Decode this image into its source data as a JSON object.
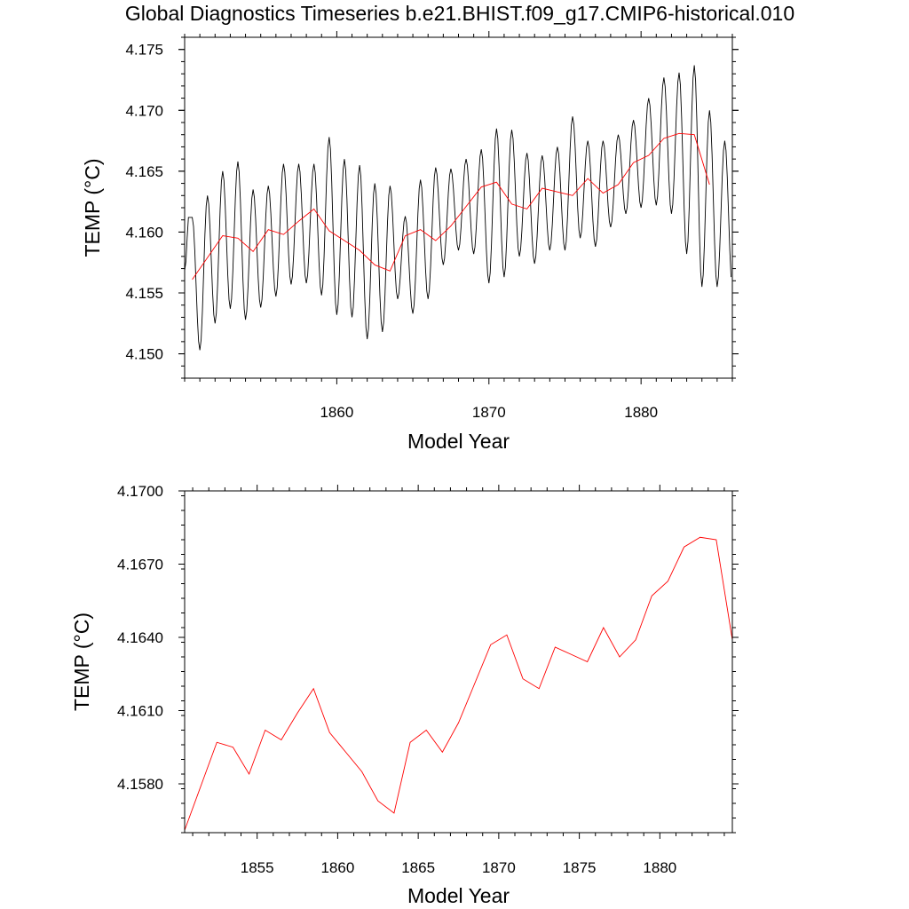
{
  "figure": {
    "title": "Global Diagnostics Timeseries b.e21.BHIST.f09_g17.CMIP6-historical.010"
  },
  "chart_data": [
    {
      "type": "line",
      "title": "",
      "xlabel": "Model Year",
      "ylabel": "TEMP (°C)",
      "xlim": [
        1850.0,
        1886.0
      ],
      "ylim": [
        4.148,
        4.176
      ],
      "xticks": [
        1860,
        1870,
        1880
      ],
      "xtick_labels": [
        "1860",
        "1870",
        "1880"
      ],
      "yticks": [
        4.15,
        4.155,
        4.16,
        4.165,
        4.17,
        4.175
      ],
      "ytick_labels": [
        "4.150",
        "4.155",
        "4.160",
        "4.165",
        "4.170",
        "4.175"
      ],
      "grid": false,
      "series": [
        {
          "color": "#000000",
          "style": "monthly",
          "points_per_year": 12,
          "start": 1850.0,
          "peaks": [
            4.1612,
            4.163,
            4.165,
            4.1658,
            4.1635,
            4.1638,
            4.1656,
            4.1656,
            4.1656,
            4.1678,
            4.166,
            4.1655,
            4.164,
            4.1638,
            4.1613,
            4.1643,
            4.1653,
            4.1652,
            4.166,
            4.1668,
            4.1685,
            4.1684,
            4.1665,
            4.1663,
            4.167,
            4.1695,
            4.1675,
            4.1675,
            4.168,
            4.1692,
            4.171,
            4.1727,
            4.1731,
            4.1737,
            4.17,
            4.1675
          ],
          "troughs": [
            4.1503,
            4.1525,
            4.1537,
            4.1528,
            4.1538,
            4.1547,
            4.1557,
            4.1558,
            4.1548,
            4.1532,
            4.153,
            4.1512,
            4.1518,
            4.1545,
            4.1533,
            4.1545,
            4.1573,
            4.1585,
            4.1582,
            4.1558,
            4.1563,
            4.158,
            4.1574,
            4.1585,
            4.1585,
            4.1595,
            4.1588,
            4.1604,
            4.1615,
            4.162,
            4.1622,
            4.1615,
            4.1582,
            4.1555,
            4.1555
          ]
        },
        {
          "color": "#ff0000",
          "style": "annual",
          "x": [
            1850.5,
            1851.5,
            1852.5,
            1853.5,
            1854.5,
            1855.5,
            1856.5,
            1857.5,
            1858.5,
            1859.5,
            1860.5,
            1861.5,
            1862.5,
            1863.5,
            1864.5,
            1865.5,
            1866.5,
            1867.5,
            1868.5,
            1869.5,
            1870.5,
            1871.5,
            1872.5,
            1873.5,
            1874.5,
            1875.5,
            1876.5,
            1877.5,
            1878.5,
            1879.5,
            1880.5,
            1881.5,
            1882.5,
            1883.5,
            1884.5
          ],
          "y": [
            4.1561,
            4.1579,
            4.1597,
            4.1595,
            4.1584,
            4.1602,
            4.1598,
            4.1609,
            4.1619,
            4.1601,
            4.1593,
            4.1585,
            4.1573,
            4.1568,
            4.1597,
            4.1602,
            4.1593,
            4.1605,
            4.1621,
            4.1637,
            4.1641,
            4.1623,
            4.1619,
            4.1636,
            4.1633,
            4.163,
            4.1644,
            4.1632,
            4.1639,
            4.1657,
            4.1663,
            4.1677,
            4.1681,
            4.168,
            4.1639
          ]
        }
      ]
    },
    {
      "type": "line",
      "title": "",
      "xlabel": "Model Year",
      "ylabel": "TEMP (°C)",
      "xlim": [
        1850.5,
        1884.5
      ],
      "ylim": [
        4.156,
        4.17
      ],
      "xticks": [
        1855,
        1860,
        1865,
        1870,
        1875,
        1880
      ],
      "xtick_labels": [
        "1855",
        "1860",
        "1865",
        "1870",
        "1875",
        "1880"
      ],
      "yticks": [
        4.158,
        4.161,
        4.164,
        4.167,
        4.17
      ],
      "ytick_labels": [
        "4.1580",
        "4.1610",
        "4.1640",
        "4.1670",
        "4.1700"
      ],
      "grid": false,
      "series": [
        {
          "color": "#ff0000",
          "style": "annual",
          "x": [
            1850.5,
            1851.5,
            1852.5,
            1853.5,
            1854.5,
            1855.5,
            1856.5,
            1857.5,
            1858.5,
            1859.5,
            1860.5,
            1861.5,
            1862.5,
            1863.5,
            1864.5,
            1865.5,
            1866.5,
            1867.5,
            1868.5,
            1869.5,
            1870.5,
            1871.5,
            1872.5,
            1873.5,
            1874.5,
            1875.5,
            1876.5,
            1877.5,
            1878.5,
            1879.5,
            1880.5,
            1881.5,
            1882.5,
            1883.5,
            1884.5
          ],
          "y": [
            4.1561,
            4.1579,
            4.1597,
            4.1595,
            4.1584,
            4.1602,
            4.1598,
            4.1609,
            4.1619,
            4.1601,
            4.1593,
            4.1585,
            4.1573,
            4.1568,
            4.1597,
            4.1602,
            4.1593,
            4.1605,
            4.1621,
            4.1637,
            4.1641,
            4.1623,
            4.1619,
            4.1636,
            4.1633,
            4.163,
            4.1644,
            4.1632,
            4.1639,
            4.1657,
            4.1663,
            4.1677,
            4.1681,
            4.168,
            4.1639
          ]
        }
      ]
    }
  ]
}
